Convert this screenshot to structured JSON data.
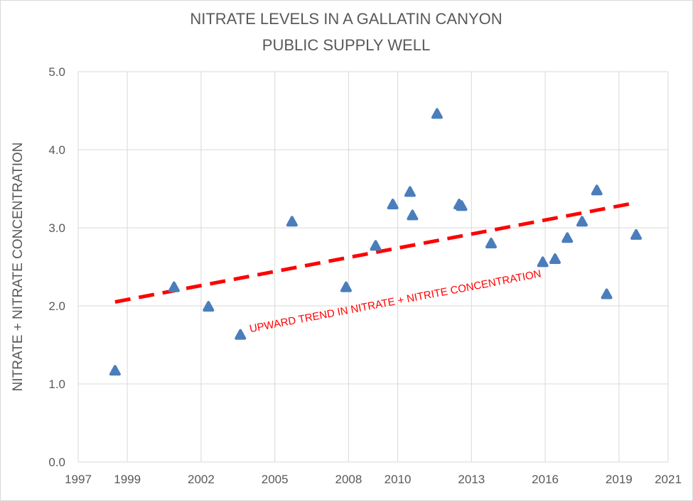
{
  "chart_data": {
    "type": "scatter",
    "title": [
      "NITRATE LEVELS IN A GALLATIN CANYON",
      "PUBLIC SUPPLY WELL"
    ],
    "xlabel": "",
    "ylabel": "NITRATE + NITRATE CONCENTRATION",
    "xlim": [
      1997,
      2021
    ],
    "ylim": [
      0,
      5
    ],
    "x_ticks": [
      {
        "value": 1997,
        "label": "1997"
      },
      {
        "value": 1999,
        "label": "1999"
      },
      {
        "value": 2002,
        "label": "2002"
      },
      {
        "value": 2005,
        "label": "2005"
      },
      {
        "value": 2008,
        "label": "2008"
      },
      {
        "value": 2010,
        "label": "2010"
      },
      {
        "value": 2013,
        "label": "2013"
      },
      {
        "value": 2016,
        "label": "2016"
      },
      {
        "value": 2019,
        "label": "2019"
      },
      {
        "value": 2021,
        "label": "2021"
      }
    ],
    "y_ticks": [
      {
        "value": 0,
        "label": "0.0"
      },
      {
        "value": 1,
        "label": "1.0"
      },
      {
        "value": 2,
        "label": "2.0"
      },
      {
        "value": 3,
        "label": "3.0"
      },
      {
        "value": 4,
        "label": "4.0"
      },
      {
        "value": 5,
        "label": "5.0"
      }
    ],
    "grid": true,
    "marker_color": "#4a7ebb",
    "points": [
      {
        "x": 1998.5,
        "y": 1.17
      },
      {
        "x": 2000.9,
        "y": 2.24
      },
      {
        "x": 2002.3,
        "y": 1.99
      },
      {
        "x": 2003.6,
        "y": 1.63
      },
      {
        "x": 2005.7,
        "y": 3.08
      },
      {
        "x": 2007.9,
        "y": 2.24
      },
      {
        "x": 2009.1,
        "y": 2.77
      },
      {
        "x": 2009.8,
        "y": 3.3
      },
      {
        "x": 2010.5,
        "y": 3.46
      },
      {
        "x": 2010.6,
        "y": 3.16
      },
      {
        "x": 2011.6,
        "y": 4.46
      },
      {
        "x": 2012.5,
        "y": 3.3
      },
      {
        "x": 2012.6,
        "y": 3.28
      },
      {
        "x": 2013.8,
        "y": 2.8
      },
      {
        "x": 2015.9,
        "y": 2.56
      },
      {
        "x": 2016.4,
        "y": 2.6
      },
      {
        "x": 2016.9,
        "y": 2.87
      },
      {
        "x": 2017.5,
        "y": 3.08
      },
      {
        "x": 2018.1,
        "y": 3.48
      },
      {
        "x": 2018.5,
        "y": 2.15
      },
      {
        "x": 2019.7,
        "y": 2.91
      }
    ],
    "trendline": {
      "color": "#ff0000",
      "style": "dashed",
      "start": {
        "x": 1998.5,
        "y": 2.05
      },
      "end": {
        "x": 2019.5,
        "y": 3.31
      }
    },
    "annotation": {
      "text": "UPWARD TREND IN NITRATE + NITRITE CONCENTRATION",
      "color": "#ff0000",
      "anchor": {
        "x": 2004.0,
        "y": 1.66
      }
    }
  }
}
